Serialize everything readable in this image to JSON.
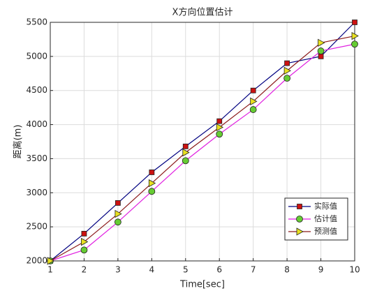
{
  "chart_data": {
    "type": "line",
    "title": "X方向位置估计",
    "x_label": "Time[sec]",
    "y_label": "距离(m)",
    "x": [
      1,
      2,
      3,
      4,
      5,
      6,
      7,
      8,
      9,
      10
    ],
    "series": [
      {
        "name": "实际值",
        "color": "#000080",
        "marker": "square",
        "marker_color": "#cc1111",
        "values": [
          2000,
          2400,
          2850,
          3300,
          3680,
          4050,
          4500,
          4900,
          5000,
          5500
        ]
      },
      {
        "name": "估计值",
        "color": "#e020e0",
        "marker": "circle",
        "marker_color": "#66cc33",
        "values": [
          2000,
          2160,
          2570,
          3020,
          3470,
          3860,
          4220,
          4680,
          5080,
          5180
        ]
      },
      {
        "name": "预测值",
        "color": "#8b1a1a",
        "marker": "triangle-right",
        "marker_color": "#e8e020",
        "values": [
          2000,
          2280,
          2690,
          3140,
          3590,
          3960,
          4340,
          4790,
          5200,
          5300
        ]
      }
    ],
    "xlim": [
      1,
      10
    ],
    "xticks": [
      1,
      2,
      3,
      4,
      5,
      6,
      7,
      8,
      9,
      10
    ],
    "ylim": [
      2000,
      5500
    ],
    "yticks": [
      2000,
      2500,
      3000,
      3500,
      4000,
      4500,
      5000,
      5500
    ],
    "grid": true,
    "legend": "lower right"
  }
}
